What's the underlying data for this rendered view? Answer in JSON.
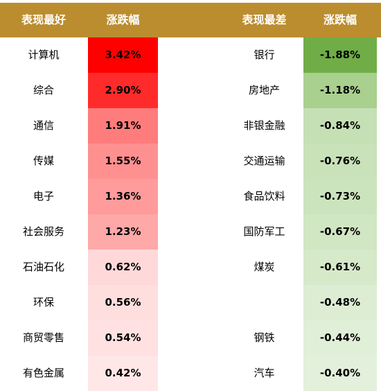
{
  "header": {
    "best_label": "表现最好",
    "best_change_label": "涨跌幅",
    "worst_label": "表现最差",
    "worst_change_label": "涨跌幅"
  },
  "colors": {
    "header_bg": "#BB8D2F",
    "header_text": "#FFFFFF"
  },
  "best": [
    {
      "name": "计算机",
      "change": "3.42%",
      "color": "#FF0000"
    },
    {
      "name": "综合",
      "change": "2.90%",
      "color": "#FF2B2B"
    },
    {
      "name": "通信",
      "change": "1.91%",
      "color": "#FF7C7C"
    },
    {
      "name": "传媒",
      "change": "1.55%",
      "color": "#FF9090"
    },
    {
      "name": "电子",
      "change": "1.36%",
      "color": "#FF9B9B"
    },
    {
      "name": "社会服务",
      "change": "1.23%",
      "color": "#FFA8A8"
    },
    {
      "name": "石油石化",
      "change": "0.62%",
      "color": "#FFD9D9"
    },
    {
      "name": "环保",
      "change": "0.56%",
      "color": "#FFDEDE"
    },
    {
      "name": "商贸零售",
      "change": "0.54%",
      "color": "#FFE1E1"
    },
    {
      "name": "有色金属",
      "change": "0.42%",
      "color": "#FFE7E7"
    }
  ],
  "worst": [
    {
      "name": "银行",
      "change": "-1.88%",
      "color": "#70AD47"
    },
    {
      "name": "房地产",
      "change": "-1.18%",
      "color": "#A9D08E"
    },
    {
      "name": "非银金融",
      "change": "-0.84%",
      "color": "#C5E0B4"
    },
    {
      "name": "交通运输",
      "change": "-0.76%",
      "color": "#C9E2B9"
    },
    {
      "name": "食品饮料",
      "change": "-0.73%",
      "color": "#CCE4BD"
    },
    {
      "name": "国防军工",
      "change": "-0.67%",
      "color": "#D1E6C3"
    },
    {
      "name": "煤炭",
      "change": "-0.61%",
      "color": "#D6E9C9"
    },
    {
      "name": "",
      "change": "-0.48%",
      "color": "#DDEDD3"
    },
    {
      "name": "钢铁",
      "change": "-0.44%",
      "color": "#E0EFD7"
    },
    {
      "name": "汽车",
      "change": "-0.40%",
      "color": "#E3F0DB"
    }
  ]
}
